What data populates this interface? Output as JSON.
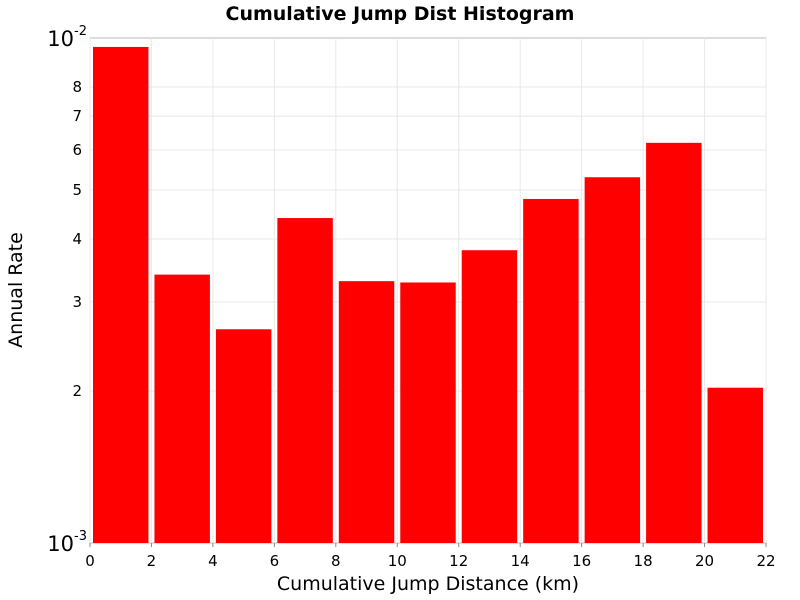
{
  "chart_data": {
    "type": "bar",
    "title": "Cumulative Jump Dist Histogram",
    "xlabel": "Cumulative Jump Distance (km)",
    "ylabel": "Annual Rate",
    "y_scale": "log",
    "grid": true,
    "bar_color": "#ff0000",
    "xlim": [
      0,
      22
    ],
    "ylim": [
      0.001,
      0.01
    ],
    "x_ticks": [
      0,
      2,
      4,
      6,
      8,
      10,
      12,
      14,
      16,
      18,
      20,
      22
    ],
    "x_tick_labels": [
      "0",
      "2",
      "4",
      "6",
      "8",
      "10",
      "12",
      "14",
      "16",
      "18",
      "20",
      "22"
    ],
    "y_minor_ticks": [
      0.002,
      0.003,
      0.004,
      0.005,
      0.006,
      0.007,
      0.008
    ],
    "y_minor_tick_labels": [
      "2",
      "3",
      "4",
      "5",
      "6",
      "7",
      "8"
    ],
    "y_major_ticks": [
      {
        "value": 0.01,
        "base": "10",
        "exp": "-2"
      },
      {
        "value": 0.001,
        "base": "10",
        "exp": "-3"
      }
    ],
    "bins": [
      {
        "x_start": 0,
        "x_end": 2,
        "value": 0.0096
      },
      {
        "x_start": 2,
        "x_end": 4,
        "value": 0.0034
      },
      {
        "x_start": 4,
        "x_end": 6,
        "value": 0.00265
      },
      {
        "x_start": 6,
        "x_end": 8,
        "value": 0.0044
      },
      {
        "x_start": 8,
        "x_end": 10,
        "value": 0.0033
      },
      {
        "x_start": 10,
        "x_end": 12,
        "value": 0.00328
      },
      {
        "x_start": 12,
        "x_end": 14,
        "value": 0.0038
      },
      {
        "x_start": 14,
        "x_end": 16,
        "value": 0.0048
      },
      {
        "x_start": 16,
        "x_end": 18,
        "value": 0.0053
      },
      {
        "x_start": 18,
        "x_end": 20,
        "value": 0.0062
      },
      {
        "x_start": 20,
        "x_end": 22,
        "value": 0.00203
      }
    ]
  }
}
